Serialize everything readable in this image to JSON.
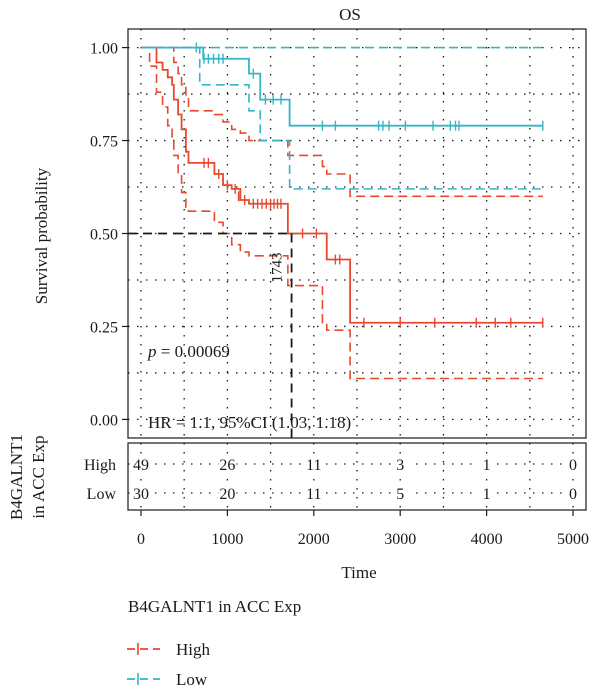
{
  "chart_data": {
    "type": "line",
    "title": "OS",
    "xlabel": "Time",
    "ylabel": "Survival probability",
    "xlim": [
      -150,
      5150
    ],
    "ylim": [
      -0.05,
      1.05
    ],
    "x_ticks": [
      0,
      1000,
      2000,
      3000,
      4000,
      5000
    ],
    "x_tick_labels": [
      "0",
      "1000",
      "2000",
      "3000",
      "4000",
      "5000"
    ],
    "y_ticks": [
      0,
      0.25,
      0.5,
      0.75,
      1.0
    ],
    "y_tick_labels": [
      "0.00",
      "0.25",
      "0.50",
      "0.75",
      "1.00"
    ],
    "grid": true,
    "p_prefix": "p",
    "p_value": " = 0.00069",
    "hr_text": "HR = 1.1, 95%CI (1.03, 1.18)",
    "median_survival": {
      "label": "1743",
      "x": 1743,
      "y": 0.5
    },
    "series": [
      {
        "name": "High",
        "color": "#e8482e",
        "steps": [
          [
            0,
            1
          ],
          [
            100,
            1
          ],
          [
            180,
            0.96
          ],
          [
            250,
            0.94
          ],
          [
            310,
            0.92
          ],
          [
            360,
            0.9
          ],
          [
            380,
            0.86
          ],
          [
            430,
            0.82
          ],
          [
            470,
            0.78
          ],
          [
            520,
            0.72
          ],
          [
            550,
            0.69
          ],
          [
            650,
            0.69
          ],
          [
            850,
            0.66
          ],
          [
            950,
            0.63
          ],
          [
            1050,
            0.62
          ],
          [
            1150,
            0.59
          ],
          [
            1250,
            0.58
          ],
          [
            1700,
            0.5
          ],
          [
            2100,
            0.5
          ],
          [
            2150,
            0.43
          ],
          [
            2400,
            0.43
          ],
          [
            2420,
            0.26
          ],
          [
            4650,
            0.26
          ]
        ],
        "upper": [
          [
            0,
            1
          ],
          [
            360,
            1
          ],
          [
            380,
            0.96
          ],
          [
            430,
            0.93
          ],
          [
            470,
            0.9
          ],
          [
            520,
            0.87
          ],
          [
            550,
            0.83
          ],
          [
            650,
            0.83
          ],
          [
            850,
            0.82
          ],
          [
            950,
            0.8
          ],
          [
            1050,
            0.78
          ],
          [
            1150,
            0.77
          ],
          [
            1250,
            0.75
          ],
          [
            1700,
            0.71
          ],
          [
            2100,
            0.68
          ],
          [
            2150,
            0.66
          ],
          [
            2400,
            0.66
          ],
          [
            2420,
            0.6
          ],
          [
            4650,
            0.6
          ]
        ],
        "lower": [
          [
            0,
            1
          ],
          [
            100,
            0.95
          ],
          [
            180,
            0.88
          ],
          [
            250,
            0.84
          ],
          [
            310,
            0.79
          ],
          [
            360,
            0.76
          ],
          [
            380,
            0.71
          ],
          [
            430,
            0.66
          ],
          [
            470,
            0.61
          ],
          [
            520,
            0.57
          ],
          [
            550,
            0.56
          ],
          [
            650,
            0.56
          ],
          [
            850,
            0.53
          ],
          [
            950,
            0.5
          ],
          [
            1050,
            0.47
          ],
          [
            1150,
            0.45
          ],
          [
            1250,
            0.44
          ],
          [
            1700,
            0.36
          ],
          [
            2100,
            0.26
          ],
          [
            2150,
            0.24
          ],
          [
            2400,
            0.24
          ],
          [
            2420,
            0.11
          ],
          [
            4650,
            0.11
          ]
        ],
        "censors": [
          [
            730,
            0.69
          ],
          [
            780,
            0.69
          ],
          [
            900,
            0.66
          ],
          [
            1000,
            0.63
          ],
          [
            1090,
            0.62
          ],
          [
            1130,
            0.6
          ],
          [
            1200,
            0.59
          ],
          [
            1300,
            0.58
          ],
          [
            1350,
            0.58
          ],
          [
            1400,
            0.58
          ],
          [
            1450,
            0.58
          ],
          [
            1500,
            0.58
          ],
          [
            1540,
            0.58
          ],
          [
            1580,
            0.58
          ],
          [
            1620,
            0.58
          ],
          [
            1870,
            0.5
          ],
          [
            2030,
            0.5
          ],
          [
            2250,
            0.43
          ],
          [
            2300,
            0.43
          ],
          [
            2580,
            0.26
          ],
          [
            3000,
            0.26
          ],
          [
            3400,
            0.26
          ],
          [
            3880,
            0.26
          ],
          [
            4100,
            0.26
          ],
          [
            4280,
            0.26
          ],
          [
            4650,
            0.26
          ]
        ]
      },
      {
        "name": "Low",
        "color": "#37b4c8",
        "steps": [
          [
            0,
            1
          ],
          [
            700,
            1
          ],
          [
            720,
            0.97
          ],
          [
            1230,
            0.97
          ],
          [
            1250,
            0.93
          ],
          [
            1360,
            0.93
          ],
          [
            1380,
            0.86
          ],
          [
            1700,
            0.86
          ],
          [
            1720,
            0.79
          ],
          [
            4650,
            0.79
          ]
        ],
        "upper": [
          [
            0,
            1
          ],
          [
            4650,
            1
          ]
        ],
        "lower": [
          [
            0,
            1
          ],
          [
            650,
            1
          ],
          [
            680,
            0.9
          ],
          [
            1230,
            0.9
          ],
          [
            1250,
            0.83
          ],
          [
            1360,
            0.83
          ],
          [
            1380,
            0.75
          ],
          [
            1700,
            0.75
          ],
          [
            1720,
            0.62
          ],
          [
            4650,
            0.62
          ]
        ],
        "censors": [
          [
            640,
            1
          ],
          [
            730,
            0.97
          ],
          [
            780,
            0.97
          ],
          [
            840,
            0.97
          ],
          [
            900,
            0.97
          ],
          [
            950,
            0.97
          ],
          [
            1300,
            0.93
          ],
          [
            1440,
            0.86
          ],
          [
            1530,
            0.86
          ],
          [
            1620,
            0.86
          ],
          [
            2100,
            0.79
          ],
          [
            2250,
            0.79
          ],
          [
            2750,
            0.79
          ],
          [
            2800,
            0.79
          ],
          [
            2870,
            0.79
          ],
          [
            3060,
            0.79
          ],
          [
            3380,
            0.79
          ],
          [
            3580,
            0.79
          ],
          [
            3640,
            0.79
          ],
          [
            3680,
            0.79
          ],
          [
            4650,
            0.79
          ]
        ]
      }
    ]
  },
  "risk_table": {
    "ylabel_line1": "B4GALNT1",
    "ylabel_line2": "in ACC Exp",
    "times": [
      0,
      1000,
      2000,
      3000,
      4000,
      5000
    ],
    "rows": [
      {
        "label": "High",
        "counts": [
          "49",
          "26",
          "11",
          "3",
          "1",
          "0"
        ]
      },
      {
        "label": "Low",
        "counts": [
          "30",
          "20",
          "11",
          "5",
          "1",
          "0"
        ]
      }
    ]
  },
  "legend": {
    "title": "B4GALNT1 in ACC Exp",
    "placement": "bottom-left",
    "items": [
      {
        "label": "High",
        "color": "#e8482e"
      },
      {
        "label": "Low",
        "color": "#37b4c8"
      }
    ]
  }
}
